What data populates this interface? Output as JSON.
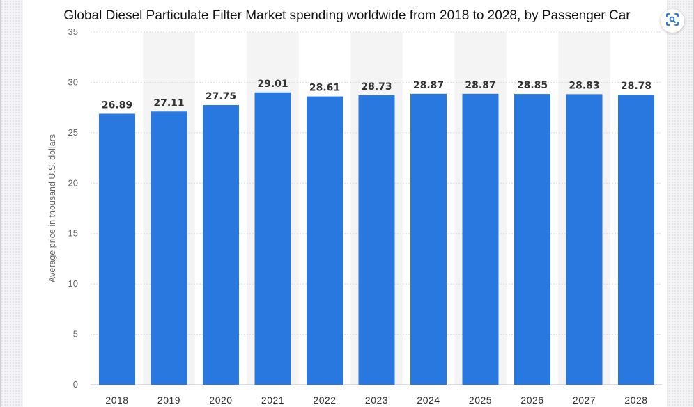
{
  "chart_data": {
    "type": "bar",
    "title": "Global Diesel Particulate Filter Market spending worldwide from 2018 to 2028, by Passenger Car",
    "ylabel": "Average price in thousand U.S. dollars",
    "xlabel": "",
    "categories": [
      "2018",
      "2019",
      "2020",
      "2021",
      "2022",
      "2023",
      "2024",
      "2025",
      "2026",
      "2027",
      "2028"
    ],
    "values": [
      26.89,
      27.11,
      27.75,
      29.01,
      28.61,
      28.73,
      28.87,
      28.87,
      28.85,
      28.83,
      28.78
    ],
    "value_labels": [
      "26.89",
      "27.11",
      "27.75",
      "29.01",
      "28.61",
      "28.73",
      "28.87",
      "28.87",
      "28.85",
      "28.83",
      "28.78"
    ],
    "ylim": [
      0,
      35
    ],
    "yticks": [
      "0",
      "5",
      "10",
      "15",
      "20",
      "25",
      "30",
      "35"
    ],
    "grid": true,
    "bar_color": "#2878e0",
    "alt_band_color": "#f4f4f4"
  },
  "toolbar": {
    "scan_icon": "scan-search-icon"
  }
}
